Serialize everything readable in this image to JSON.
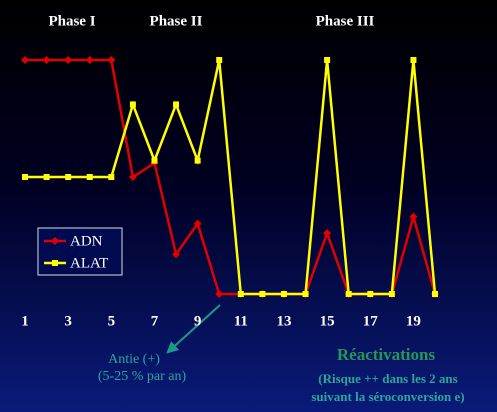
{
  "chart_data": {
    "type": "line",
    "annotations": {
      "phase1": "Phase I",
      "phase2": "Phase II",
      "phase3": "Phase III",
      "anti1": "Antie (+)",
      "anti2": "(5-25 % par an)",
      "react": "Réactivations",
      "risk1": "(Risque ++ dans les 2 ans",
      "risk2": "suivant la séroconversion e)"
    },
    "x": [
      1,
      2,
      3,
      4,
      5,
      6,
      7,
      8,
      9,
      10,
      11,
      12,
      13,
      14,
      15,
      16,
      17,
      18,
      19,
      20
    ],
    "xlim": [
      1,
      20
    ],
    "xticks": [
      1,
      3,
      5,
      7,
      9,
      11,
      13,
      15,
      17,
      19
    ],
    "ylim": [
      0,
      100
    ],
    "series": [
      {
        "name": "ADN",
        "color": "#e00000",
        "marker": "diamond",
        "values": [
          100,
          100,
          100,
          100,
          100,
          50,
          56,
          17,
          30,
          0,
          0,
          0,
          0,
          0,
          26,
          0,
          0,
          0,
          33,
          0
        ]
      },
      {
        "name": "ALAT",
        "color": "#ffff00",
        "marker": "square",
        "values": [
          50,
          50,
          50,
          50,
          50,
          81,
          57,
          81,
          57,
          100,
          0,
          0,
          0,
          0,
          100,
          0,
          0,
          0,
          100,
          0
        ]
      }
    ]
  }
}
